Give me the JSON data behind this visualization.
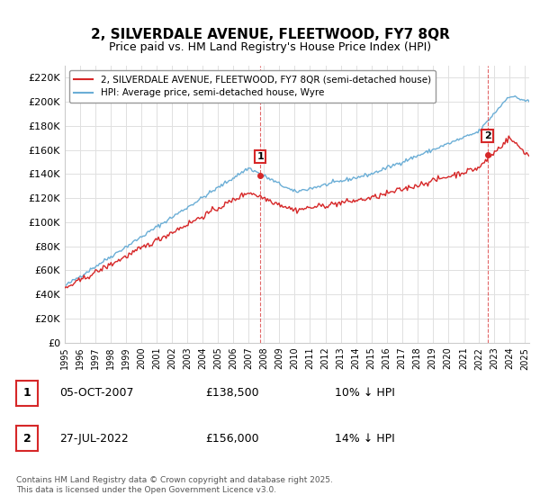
{
  "title": "2, SILVERDALE AVENUE, FLEETWOOD, FY7 8QR",
  "subtitle": "Price paid vs. HM Land Registry's House Price Index (HPI)",
  "ylabel_ticks": [
    "£0",
    "£20K",
    "£40K",
    "£60K",
    "£80K",
    "£100K",
    "£120K",
    "£140K",
    "£160K",
    "£180K",
    "£200K",
    "£220K"
  ],
  "ylim": [
    0,
    230000
  ],
  "ytick_vals": [
    0,
    20000,
    40000,
    60000,
    80000,
    100000,
    120000,
    140000,
    160000,
    180000,
    200000,
    220000
  ],
  "hpi_color": "#6baed6",
  "price_color": "#d62728",
  "dashed_color": "#d62728",
  "marker1_date": 2007.76,
  "marker2_date": 2022.57,
  "marker1_price": 138500,
  "marker2_price": 156000,
  "legend_label1": "2, SILVERDALE AVENUE, FLEETWOOD, FY7 8QR (semi-detached house)",
  "legend_label2": "HPI: Average price, semi-detached house, Wyre",
  "annotation1_label": "1",
  "annotation2_label": "2",
  "table_row1": [
    "1",
    "05-OCT-2007",
    "£138,500",
    "10% ↓ HPI"
  ],
  "table_row2": [
    "2",
    "27-JUL-2022",
    "£156,000",
    "14% ↓ HPI"
  ],
  "footer": "Contains HM Land Registry data © Crown copyright and database right 2025.\nThis data is licensed under the Open Government Licence v3.0.",
  "background_color": "#ffffff",
  "grid_color": "#e0e0e0"
}
